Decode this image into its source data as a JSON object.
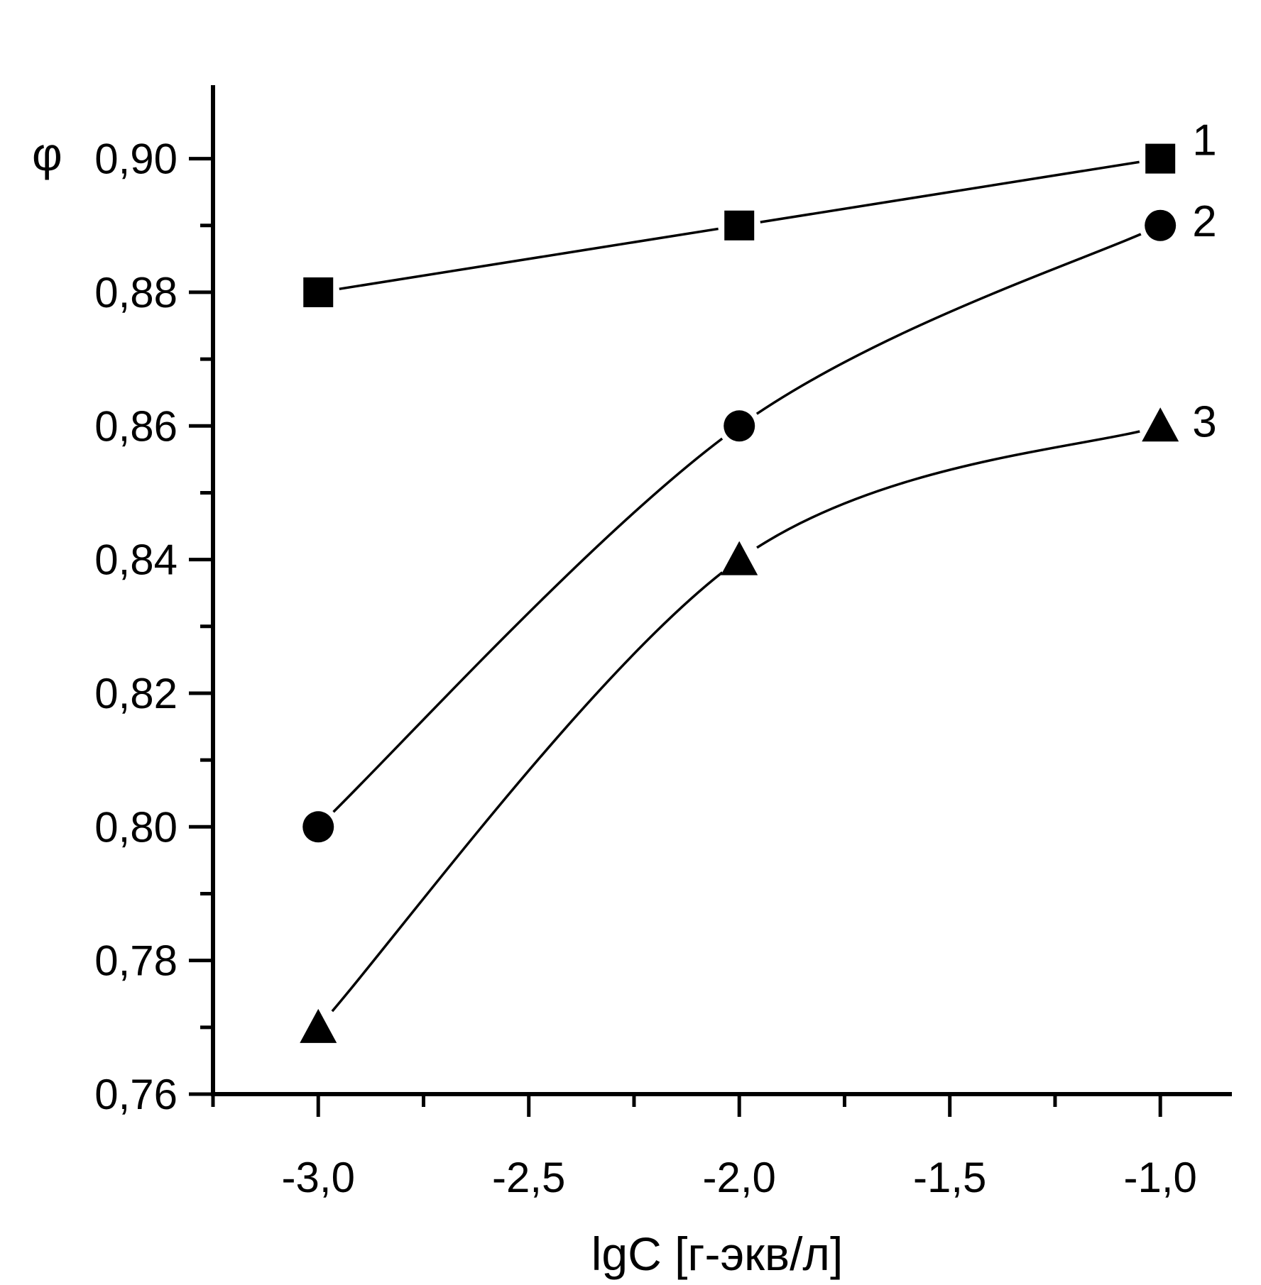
{
  "chart_data": {
    "type": "line",
    "title": "",
    "xlabel": "lgC [г-экв/л]",
    "ylabel": "φ",
    "xlim": [
      -3.25,
      -0.83
    ],
    "ylim": [
      0.76,
      0.911
    ],
    "x_ticks": [
      -3.0,
      -2.5,
      -2.0,
      -1.5,
      -1.0
    ],
    "x_tick_labels": [
      "-3,0",
      "-2,5",
      "-2,0",
      "-1,5",
      "-1,0"
    ],
    "x_minor_ticks": [
      -3.25,
      -2.75,
      -2.25,
      -1.75,
      -1.25
    ],
    "y_ticks": [
      0.76,
      0.78,
      0.8,
      0.82,
      0.84,
      0.86,
      0.88,
      0.9
    ],
    "y_tick_labels": [
      "0,76",
      "0,78",
      "0,80",
      "0,82",
      "0,84",
      "0,86",
      "0,88",
      "0,90"
    ],
    "y_minor_ticks": [
      0.77,
      0.79,
      0.81,
      0.83,
      0.85,
      0.87,
      0.89
    ],
    "grid": false,
    "legend": "none",
    "series": [
      {
        "name": "1",
        "marker": "square",
        "x": [
          -3.0,
          -2.0,
          -1.0
        ],
        "values": [
          0.88,
          0.89,
          0.9
        ]
      },
      {
        "name": "2",
        "marker": "circle",
        "x": [
          -3.0,
          -2.0,
          -1.0
        ],
        "values": [
          0.8,
          0.86,
          0.89
        ]
      },
      {
        "name": "3",
        "marker": "triangle",
        "x": [
          -3.0,
          -2.0,
          -1.0
        ],
        "values": [
          0.77,
          0.84,
          0.86
        ]
      }
    ]
  }
}
